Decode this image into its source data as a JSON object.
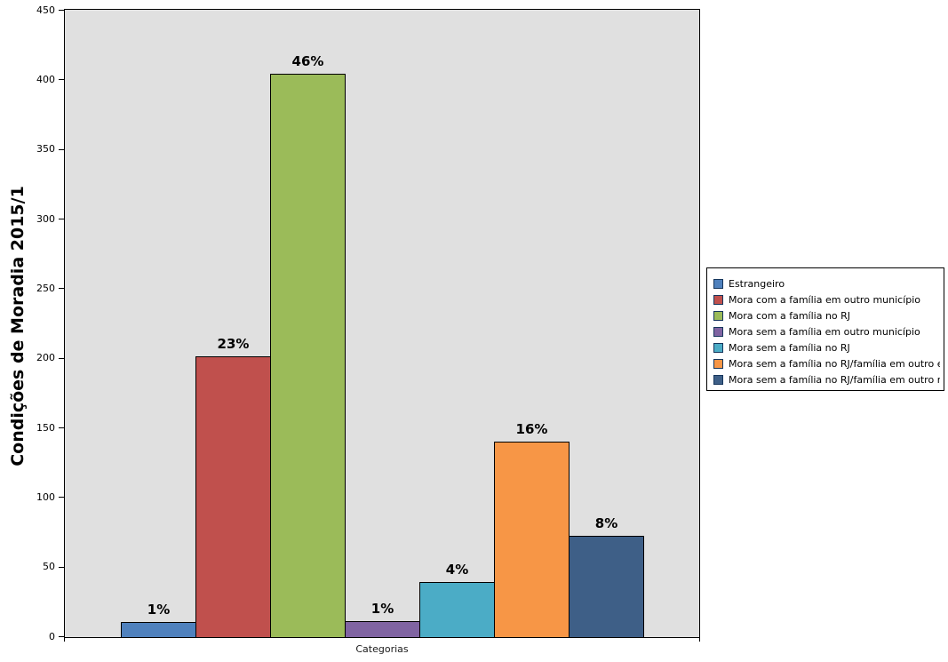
{
  "chart_data": {
    "type": "bar",
    "title": "Condições de Moradia 2015/1",
    "xlabel": "Categorias",
    "ylabel": "",
    "ylim": [
      0,
      450
    ],
    "yticks": [
      0,
      50,
      100,
      150,
      200,
      250,
      300,
      350,
      400,
      450
    ],
    "grid": false,
    "legend_position": "right",
    "plot_background": "#E0E0E0",
    "axis_color": "#000000",
    "categories": [
      "Estrangeiro",
      "Mora com a família em outro município",
      "Mora com a família no RJ",
      "Mora sem a família em outro município",
      "Mora sem a família no RJ",
      "Mora sem a família no RJ/família em outro estado",
      "Mora sem a família no RJ/família em outro município"
    ],
    "series": [
      {
        "name": "Estrangeiro",
        "value": 10,
        "label": "1%",
        "color": "#4F81BD"
      },
      {
        "name": "Mora com a família em outro município",
        "value": 201,
        "label": "23%",
        "color": "#C0504D"
      },
      {
        "name": "Mora com a família no RJ",
        "value": 404,
        "label": "46%",
        "color": "#9BBB59"
      },
      {
        "name": "Mora sem a família em outro município",
        "value": 11,
        "label": "1%",
        "color": "#8064A2"
      },
      {
        "name": "Mora sem a família no RJ",
        "value": 39,
        "label": "4%",
        "color": "#4BACC6"
      },
      {
        "name": "Mora sem a família no RJ/família em outro estado",
        "value": 140,
        "label": "16%",
        "color": "#F79646"
      },
      {
        "name": "Mora sem a família no RJ/família em outro município",
        "value": 72,
        "label": "8%",
        "color": "#3E5F87"
      }
    ]
  }
}
